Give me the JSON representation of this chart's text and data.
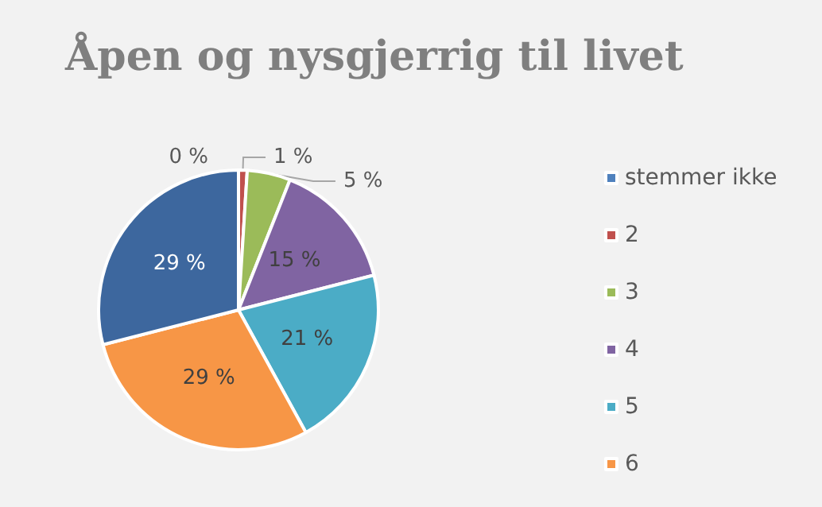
{
  "chart_data": {
    "type": "pie",
    "title": "Åpen og nysgjerrig til livet",
    "categories": [
      "stemmer ikke",
      "2",
      "3",
      "4",
      "5",
      "6",
      null
    ],
    "values": [
      0,
      1,
      5,
      15,
      21,
      29,
      29
    ],
    "colors": [
      "#4f81bd",
      "#c0504d",
      "#9bbb59",
      "#8064a2",
      "#4bacc6",
      "#f79646",
      "#3d679e"
    ],
    "value_labels": [
      "0 %",
      "1 %",
      "5 %",
      "15 %",
      "21 %",
      "29 %",
      "29 %"
    ],
    "legend": "right"
  }
}
